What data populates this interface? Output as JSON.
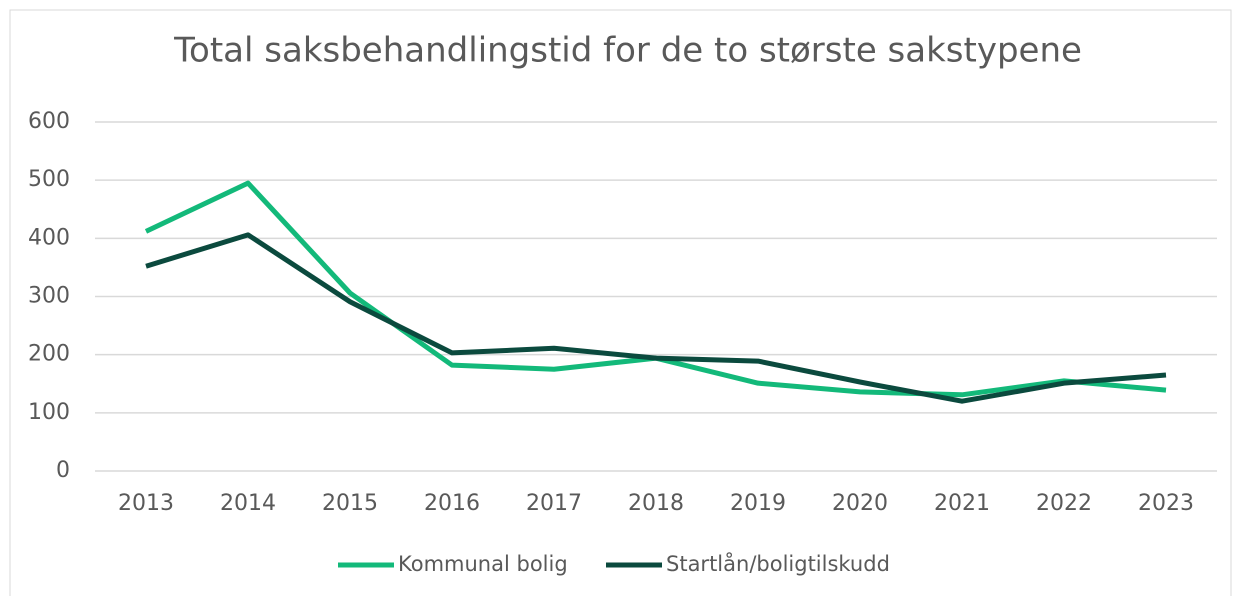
{
  "chart_data": {
    "type": "line",
    "title": "Total saksbehandlingstid for de to største sakstypene",
    "categories": [
      "2013",
      "2014",
      "2015",
      "2016",
      "2017",
      "2018",
      "2019",
      "2020",
      "2021",
      "2022",
      "2023"
    ],
    "series": [
      {
        "name": "Kommunal bolig",
        "color": "#13b97a",
        "values": [
          412,
          495,
          306,
          182,
          175,
          194,
          151,
          136,
          131,
          155,
          139
        ]
      },
      {
        "name": "Startlån/boligtilskudd",
        "color": "#0b4a3e",
        "values": [
          352,
          406,
          291,
          203,
          211,
          194,
          189,
          153,
          120,
          151,
          165
        ]
      }
    ],
    "ylim": [
      0,
      600
    ],
    "yticks": [
      0,
      100,
      200,
      300,
      400,
      500,
      600
    ],
    "grid": true,
    "legend": "bottom"
  }
}
